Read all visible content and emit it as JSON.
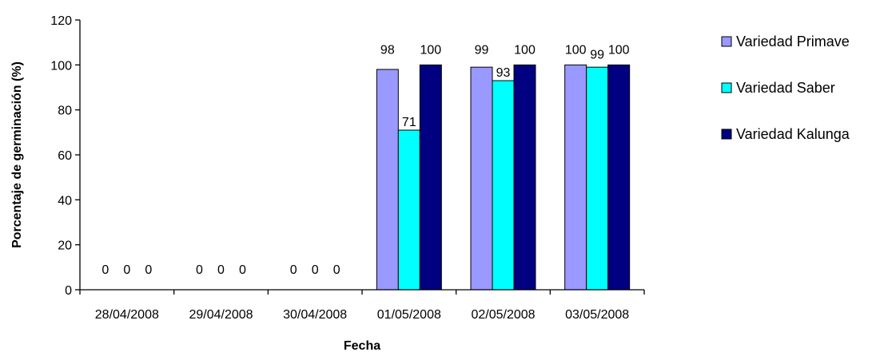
{
  "chart_data": {
    "type": "bar",
    "categories": [
      "28/04/2008",
      "29/04/2008",
      "30/04/2008",
      "01/05/2008",
      "02/05/2008",
      "03/05/2008"
    ],
    "series": [
      {
        "name": "Variedad Primavera",
        "legend_text": "Variedad Primave",
        "color": "#9999ff",
        "values": [
          0,
          0,
          0,
          98,
          99,
          100
        ]
      },
      {
        "name": "Variedad Saber",
        "legend_text": "Variedad Saber",
        "color": "#00ffff",
        "values": [
          0,
          0,
          0,
          71,
          93,
          99
        ]
      },
      {
        "name": "Variedad Kalunga",
        "legend_text": "Variedad Kalunga",
        "color": "#000080",
        "values": [
          0,
          0,
          0,
          100,
          100,
          100
        ]
      }
    ],
    "title": "",
    "xlabel": "Fecha",
    "ylabel": "Porcentaje de germinación (%)",
    "ylim": [
      0,
      120
    ],
    "yticks": [
      0,
      20,
      40,
      60,
      80,
      100,
      120
    ],
    "grid": false,
    "legend_position": "right"
  }
}
